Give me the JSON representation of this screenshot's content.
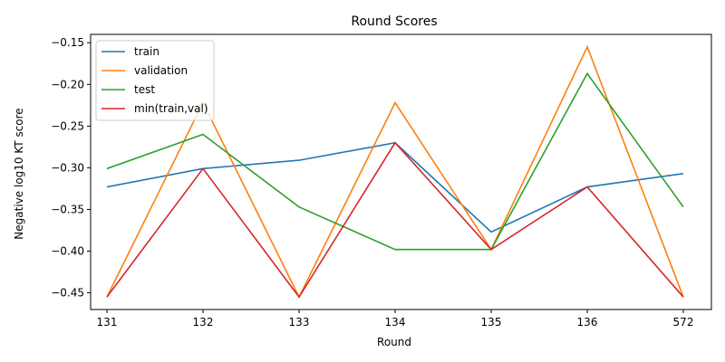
{
  "chart_data": {
    "type": "line",
    "title": "Round Scores",
    "xlabel": "Round",
    "ylabel": "Negative log10 KT score",
    "categories": [
      "131",
      "132",
      "133",
      "134",
      "135",
      "136",
      "572"
    ],
    "ylim": [
      -0.47,
      -0.14
    ],
    "yticks": [
      -0.45,
      -0.4,
      -0.35,
      -0.3,
      -0.25,
      -0.2,
      -0.15
    ],
    "ytick_labels": [
      "−0.45",
      "−0.40",
      "−0.35",
      "−0.30",
      "−0.25",
      "−0.20",
      "−0.15"
    ],
    "grid": false,
    "legend_position": "top-left",
    "series": [
      {
        "name": "train",
        "color": "#1f77b4",
        "values": [
          -0.323,
          -0.301,
          -0.291,
          -0.27,
          -0.377,
          -0.323,
          -0.307
        ]
      },
      {
        "name": "validation",
        "color": "#ff7f0e",
        "values": [
          -0.455,
          -0.222,
          -0.455,
          -0.222,
          -0.398,
          -0.155,
          -0.455
        ]
      },
      {
        "name": "test",
        "color": "#2ca02c",
        "values": [
          -0.301,
          -0.26,
          -0.347,
          -0.398,
          -0.398,
          -0.187,
          -0.347
        ]
      },
      {
        "name": "min(train,val)",
        "color": "#d62728",
        "values": [
          -0.455,
          -0.301,
          -0.455,
          -0.27,
          -0.398,
          -0.323,
          -0.455
        ]
      }
    ]
  }
}
